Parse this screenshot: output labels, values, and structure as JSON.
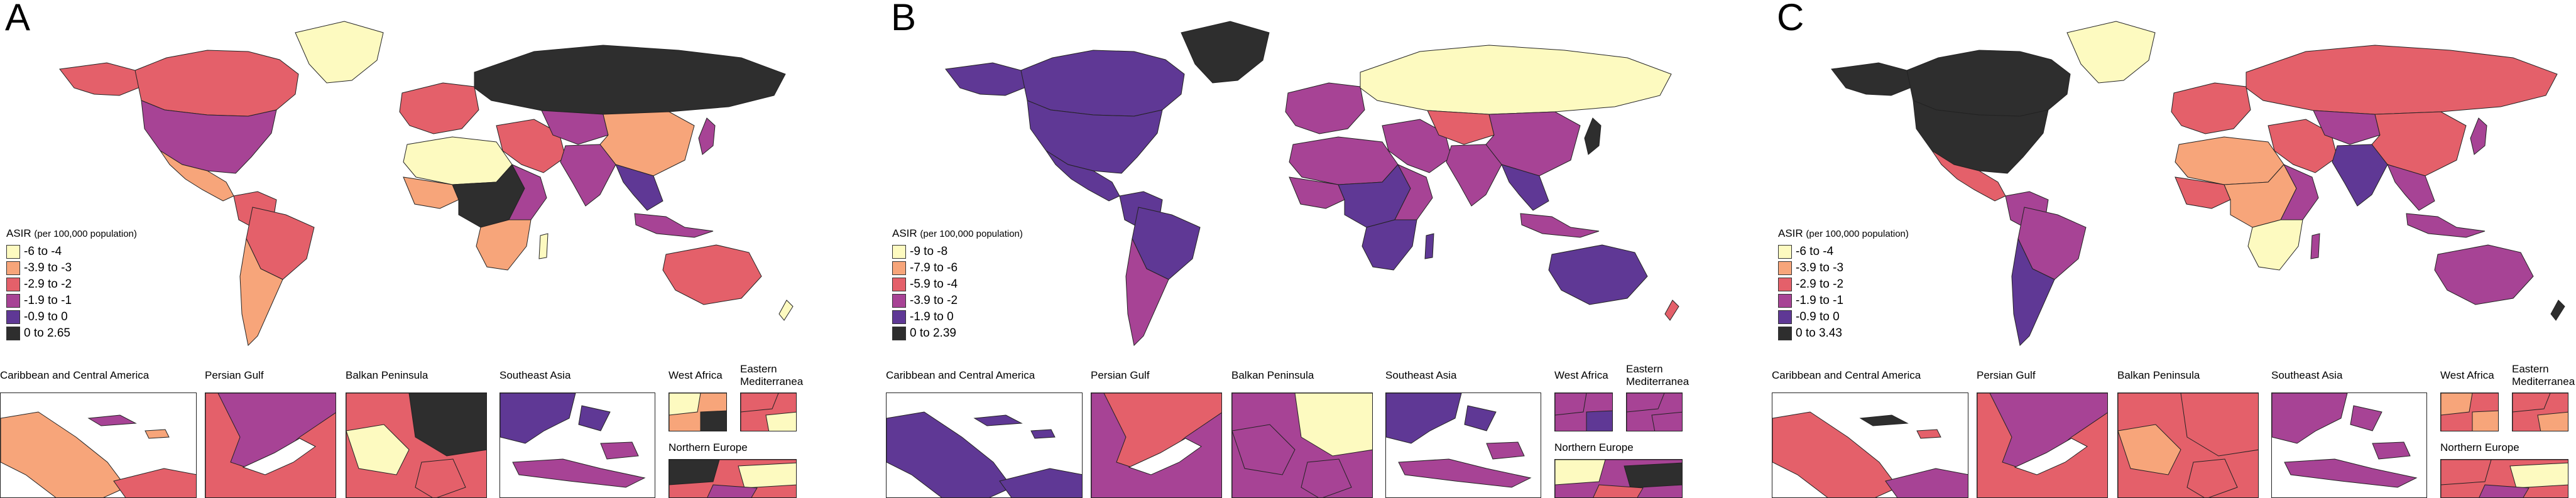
{
  "panels": [
    {
      "letter": "A",
      "legend": {
        "title": "ASIR",
        "unit": "(per 100,000 population)",
        "items": [
          {
            "label": "-6 to -4",
            "color": "#fdfac0"
          },
          {
            "label": "-3.9 to -3",
            "color": "#f7a57a"
          },
          {
            "label": "-2.9 to -2",
            "color": "#e4606a"
          },
          {
            "label": "-1.9 to -1",
            "color": "#a74395"
          },
          {
            "label": "-0.9 to 0",
            "color": "#5f3895"
          },
          {
            "label": "0 to 2.65",
            "color": "#2e2e2e"
          }
        ]
      },
      "insets": {
        "caribbean": "Caribbean and Central America",
        "persian_gulf": "Persian Gulf",
        "balkan": "Balkan Peninsula",
        "southeast_asia": "Southeast Asia",
        "west_africa": "West Africa",
        "eastern_med_line1": "Eastern",
        "eastern_med_line2": "Mediterranea",
        "northern_europe": "Northern Europe"
      }
    },
    {
      "letter": "B",
      "legend": {
        "title": "ASIR",
        "unit": "(per 100,000 population)",
        "items": [
          {
            "label": "-9 to -8",
            "color": "#fdfac0"
          },
          {
            "label": "-7.9 to -6",
            "color": "#f7a57a"
          },
          {
            "label": "-5.9 to -4",
            "color": "#e4606a"
          },
          {
            "label": "-3.9 to -2",
            "color": "#a74395"
          },
          {
            "label": "-1.9 to 0",
            "color": "#5f3895"
          },
          {
            "label": "0 to 2.39",
            "color": "#2e2e2e"
          }
        ]
      },
      "insets": {
        "caribbean": "Caribbean and Central America",
        "persian_gulf": "Persian Gulf",
        "balkan": "Balkan Peninsula",
        "southeast_asia": "Southeast Asia",
        "west_africa": "West Africa",
        "eastern_med_line1": "Eastern",
        "eastern_med_line2": "Mediterranea",
        "northern_europe": "Northern Europe"
      }
    },
    {
      "letter": "C",
      "legend": {
        "title": "ASIR",
        "unit": "(per 100,000 population)",
        "items": [
          {
            "label": "-6 to -4",
            "color": "#fdfac0"
          },
          {
            "label": "-3.9 to -3",
            "color": "#f7a57a"
          },
          {
            "label": "-2.9 to -2",
            "color": "#e4606a"
          },
          {
            "label": "-1.9 to -1",
            "color": "#a74395"
          },
          {
            "label": "-0.9 to 0",
            "color": "#5f3895"
          },
          {
            "label": "0 to 3.43",
            "color": "#2e2e2e"
          }
        ]
      },
      "insets": {
        "caribbean": "Caribbean and Central America",
        "persian_gulf": "Persian Gulf",
        "balkan": "Balkan Peninsula",
        "southeast_asia": "Southeast Asia",
        "west_africa": "West Africa",
        "eastern_med_line1": "Eastern",
        "eastern_med_line2": "Mediterranea",
        "northern_europe": "Northern Europe"
      }
    }
  ],
  "region_colors": {
    "A": {
      "north_america": "#a74395",
      "canada": "#e4606a",
      "greenland": "#fdfac0",
      "alaska": "#e4606a",
      "central_america": "#f7a57a",
      "south_america": "#e4606a",
      "brazil": "#e4606a",
      "southern_cone": "#f7a57a",
      "western_europe": "#e4606a",
      "russia": "#2e2e2e",
      "north_africa": "#fdfac0",
      "west_africa": "#f7a57a",
      "central_africa": "#2e2e2e",
      "east_africa": "#a74395",
      "southern_africa": "#f7a57a",
      "madagascar": "#fdfac0",
      "middle_east": "#e4606a",
      "central_asia": "#a74395",
      "china": "#f7a57a",
      "india": "#a74395",
      "southeast_asia": "#5f3895",
      "japan": "#a74395",
      "indonesia": "#a74395",
      "australia": "#e4606a",
      "new_zealand": "#fdfac0"
    },
    "B": {
      "north_america": "#5f3895",
      "canada": "#5f3895",
      "greenland": "#2e2e2e",
      "alaska": "#5f3895",
      "central_america": "#5f3895",
      "south_america": "#5f3895",
      "brazil": "#5f3895",
      "southern_cone": "#a74395",
      "western_europe": "#a74395",
      "russia": "#fdfac0",
      "north_africa": "#a74395",
      "west_africa": "#a74395",
      "central_africa": "#5f3895",
      "east_africa": "#a74395",
      "southern_africa": "#5f3895",
      "madagascar": "#5f3895",
      "middle_east": "#a74395",
      "central_asia": "#e4606a",
      "china": "#a74395",
      "india": "#a74395",
      "southeast_asia": "#5f3895",
      "japan": "#2e2e2e",
      "indonesia": "#a74395",
      "australia": "#5f3895",
      "new_zealand": "#e4606a"
    },
    "C": {
      "north_america": "#2e2e2e",
      "canada": "#2e2e2e",
      "greenland": "#fdfac0",
      "alaska": "#2e2e2e",
      "central_america": "#e4606a",
      "south_america": "#a74395",
      "brazil": "#a74395",
      "southern_cone": "#5f3895",
      "western_europe": "#e4606a",
      "russia": "#e4606a",
      "north_africa": "#f7a57a",
      "west_africa": "#e4606a",
      "central_africa": "#f7a57a",
      "east_africa": "#a74395",
      "southern_africa": "#fdfac0",
      "madagascar": "#a74395",
      "middle_east": "#e4606a",
      "central_asia": "#a74395",
      "china": "#e4606a",
      "india": "#5f3895",
      "southeast_asia": "#a74395",
      "japan": "#a74395",
      "indonesia": "#a74395",
      "australia": "#a74395",
      "new_zealand": "#2e2e2e"
    }
  }
}
